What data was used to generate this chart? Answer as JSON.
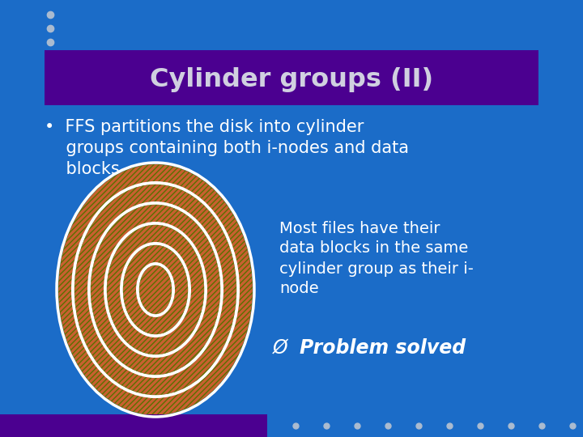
{
  "bg_color": "#1B6CC8",
  "title_text": "Cylinder groups (II)",
  "title_bg": "#4B0090",
  "title_color": "#D0D0E0",
  "bullet_line1": "•  FFS partitions the disk into cylinder",
  "bullet_line2": "    groups containing both i-nodes and data",
  "bullet_line3": "    blocks",
  "sub_text_line1": "Most files have their",
  "sub_text_line2": "data blocks in the same",
  "sub_text_line3": "cylinder group as their i-",
  "sub_text_line4": "node",
  "arrow_text": "Problem solved",
  "text_color": "#FFFFFF",
  "dot_color": "#AABBD0",
  "ellipse_fill": "#C86030",
  "ellipse_hatch_color": "#5A7000",
  "bottom_bar_color": "#4B0090",
  "dots_bottom_color": "#AABBD0"
}
